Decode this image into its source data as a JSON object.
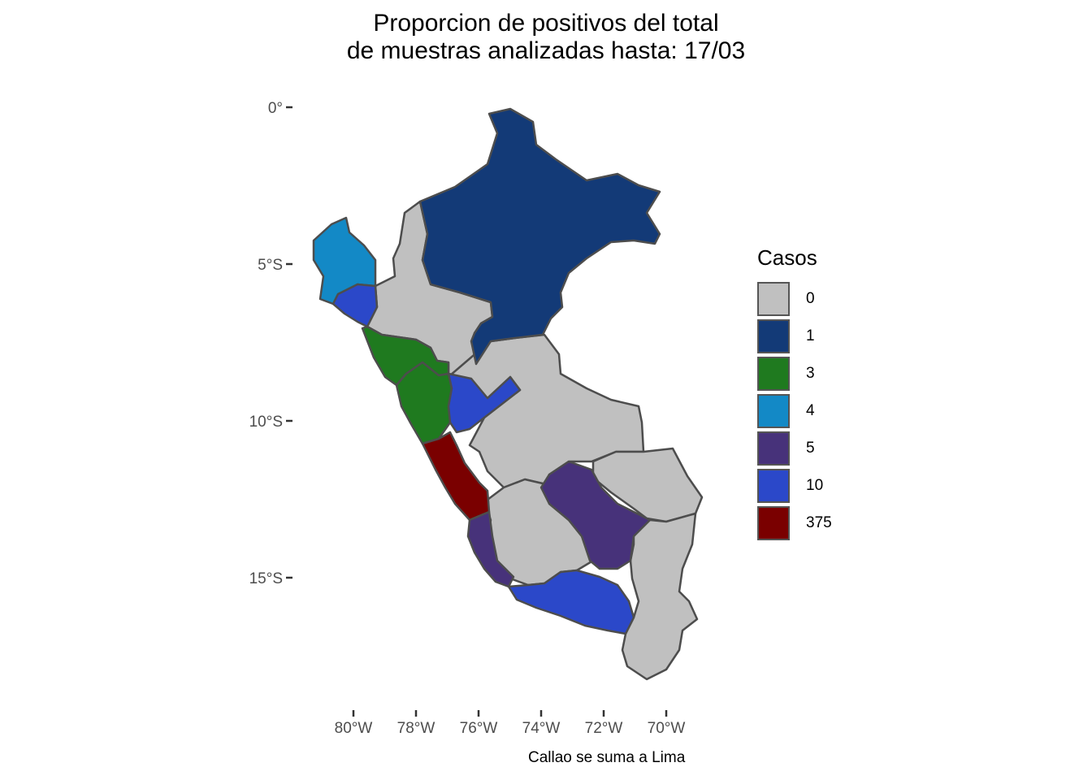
{
  "title": {
    "line1": "Proporcion de positivos del total",
    "line2": "de muestras analizadas hasta: 17/03"
  },
  "axes": {
    "y_ticks": [
      "0°",
      "5°S",
      "10°S",
      "15°S"
    ],
    "x_ticks": [
      "80°W",
      "78°W",
      "76°W",
      "74°W",
      "72°W",
      "70°W"
    ]
  },
  "legend": {
    "title": "Casos",
    "items": [
      {
        "label": "0",
        "color": "#c0c0c0"
      },
      {
        "label": "1",
        "color": "#133a77"
      },
      {
        "label": "3",
        "color": "#1f7a1f"
      },
      {
        "label": "4",
        "color": "#1389c6"
      },
      {
        "label": "5",
        "color": "#47327a"
      },
      {
        "label": "10",
        "color": "#2b48c9"
      },
      {
        "label": "375",
        "color": "#7a0000"
      }
    ]
  },
  "caption": "Callao se suma a Lima",
  "map_data": {
    "regions_by_cases": {
      "0": [
        "Amazonas",
        "Cajamarca",
        "San Martín",
        "Ucayali",
        "Pasco",
        "Junín",
        "Madre de Dios",
        "Apurímac",
        "Huancavelica",
        "Ayacucho",
        "Puno",
        "Moquegua",
        "Tacna"
      ],
      "1": [
        "Loreto"
      ],
      "3": [
        "La Libertad",
        "Áncash"
      ],
      "4": [
        "Piura"
      ],
      "5": [
        "Cusco",
        "Ica"
      ],
      "10": [
        "Lambayeque",
        "Huánuco",
        "Arequipa"
      ],
      "375": [
        "Lima"
      ]
    }
  }
}
